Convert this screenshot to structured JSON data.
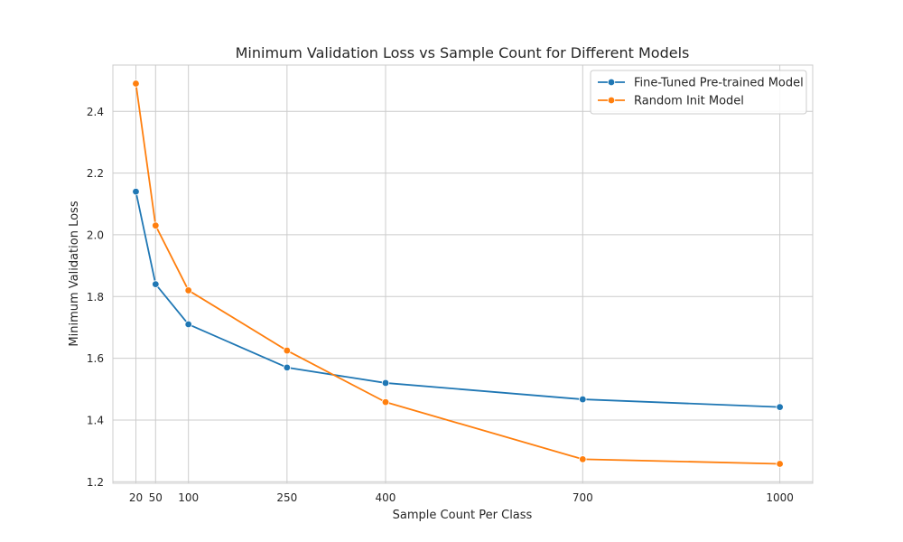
{
  "chart_data": {
    "type": "line",
    "title": "Minimum Validation Loss vs Sample Count for Different Models",
    "xlabel": "Sample Count Per Class",
    "ylabel": "Minimum Validation Loss",
    "x": [
      20,
      50,
      100,
      250,
      400,
      700,
      1000
    ],
    "xticks": [
      20,
      50,
      100,
      250,
      400,
      700,
      1000
    ],
    "yticks": [
      1.2,
      1.4,
      1.6,
      1.8,
      2.0,
      2.2,
      2.4
    ],
    "ytick_labels": [
      "1.2",
      "1.4",
      "1.6",
      "1.8",
      "2.0",
      "2.2",
      "2.4"
    ],
    "xlim": [
      -15,
      1050
    ],
    "ylim": [
      1.195,
      2.55
    ],
    "grid": true,
    "legend_position": "top-right",
    "series": [
      {
        "name": "Fine-Tuned Pre-trained Model",
        "color": "#1f77b4",
        "values": [
          2.14,
          1.84,
          1.71,
          1.57,
          1.52,
          1.467,
          1.442
        ]
      },
      {
        "name": "Random Init Model",
        "color": "#ff7f0e",
        "values": [
          2.49,
          2.03,
          1.82,
          1.625,
          1.458,
          1.273,
          1.258
        ]
      }
    ]
  }
}
